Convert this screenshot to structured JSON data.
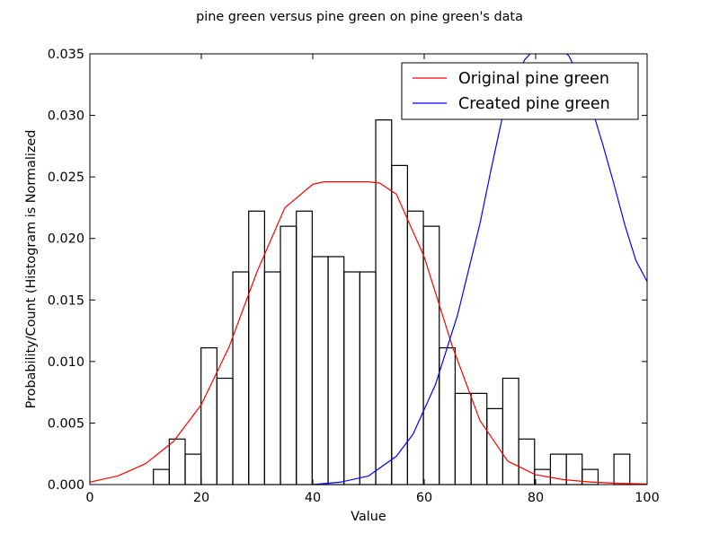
{
  "chart_data": {
    "type": "bar",
    "title": "pine green versus pine green on pine green's data",
    "xlabel": "Value",
    "ylabel": "Probability/Count (Histogram is Normalized",
    "xlim": [
      0,
      100
    ],
    "ylim": [
      0,
      0.035
    ],
    "x_ticks": [
      "0",
      "20",
      "40",
      "60",
      "80",
      "100"
    ],
    "y_ticks": [
      "0.000",
      "0.005",
      "0.010",
      "0.015",
      "0.020",
      "0.025",
      "0.030",
      "0.035"
    ],
    "grid": false,
    "legend_position": "top-right",
    "histogram": {
      "bin_start": 11.4,
      "bin_width": 2.85,
      "values": [
        0.00123,
        0.0037,
        0.00247,
        0.01111,
        0.00864,
        0.01728,
        0.02222,
        0.01728,
        0.02099,
        0.02222,
        0.01852,
        0.01852,
        0.01728,
        0.01728,
        0.02963,
        0.02593,
        0.02222,
        0.02099,
        0.01111,
        0.00741,
        0.00741,
        0.00617,
        0.00864,
        0.0037,
        0.00123,
        0.00247,
        0.00247,
        0.00123,
        0.0,
        0.00247
      ],
      "edge_color": "#000000"
    },
    "series": [
      {
        "name": "Original pine green",
        "color": "#ff0000",
        "x": [
          0,
          5,
          10,
          15,
          20,
          25,
          30,
          35,
          40,
          42,
          45,
          50,
          52,
          55,
          60,
          65,
          70,
          75,
          80,
          85,
          90,
          95,
          100
        ],
        "y": [
          0.0002,
          0.0007,
          0.0017,
          0.0035,
          0.0065,
          0.0112,
          0.0173,
          0.0225,
          0.0244,
          0.0246,
          0.0246,
          0.0246,
          0.0245,
          0.0236,
          0.0185,
          0.0113,
          0.0052,
          0.0019,
          0.0008,
          0.0004,
          0.0002,
          0.0001,
          5e-05
        ]
      },
      {
        "name": "Created pine green",
        "color": "#0000ff",
        "x": [
          40,
          45,
          50,
          55,
          58,
          62,
          66,
          70,
          72,
          74,
          76,
          78,
          80,
          82,
          84,
          86,
          88,
          90,
          92,
          94,
          96,
          98,
          100
        ],
        "y": [
          0.0,
          0.0002,
          0.0007,
          0.0023,
          0.0041,
          0.0081,
          0.0138,
          0.0212,
          0.0256,
          0.0298,
          0.0325,
          0.0345,
          0.0355,
          0.036,
          0.0358,
          0.0348,
          0.033,
          0.0307,
          0.0277,
          0.0245,
          0.0211,
          0.0182,
          0.0165
        ]
      }
    ]
  }
}
